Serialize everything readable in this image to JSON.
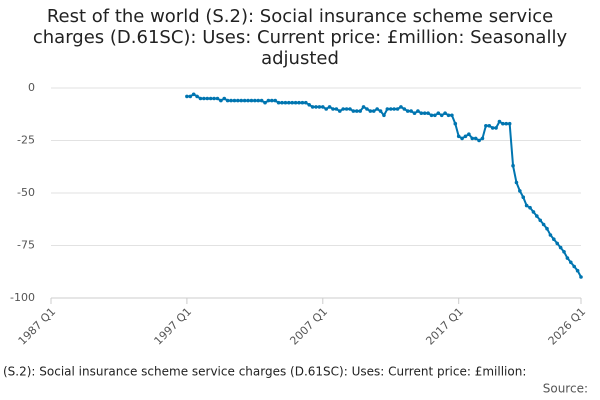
{
  "chart_data": {
    "type": "line",
    "title": "Rest of the world (S.2): Social insurance scheme service charges (D.61SC): Uses: Current price: £million: Seasonally adjusted",
    "footer": "(S.2): Social insurance scheme service charges (D.61SC): Uses: Current price: £million:",
    "source": "Source:",
    "x": [
      1997,
      1997.25,
      1997.5,
      1997.75,
      1998,
      1998.25,
      1998.5,
      1998.75,
      1999,
      1999.25,
      1999.5,
      1999.75,
      2000,
      2000.25,
      2000.5,
      2000.75,
      2001,
      2001.25,
      2001.5,
      2001.75,
      2002,
      2002.25,
      2002.5,
      2002.75,
      2003,
      2003.25,
      2003.5,
      2003.75,
      2004,
      2004.25,
      2004.5,
      2004.75,
      2005,
      2005.25,
      2005.5,
      2005.75,
      2006,
      2006.25,
      2006.5,
      2006.75,
      2007,
      2007.25,
      2007.5,
      2007.75,
      2008,
      2008.25,
      2008.5,
      2008.75,
      2009,
      2009.25,
      2009.5,
      2009.75,
      2010,
      2010.25,
      2010.5,
      2010.75,
      2011,
      2011.25,
      2011.5,
      2011.75,
      2012,
      2012.25,
      2012.5,
      2012.75,
      2013,
      2013.25,
      2013.5,
      2013.75,
      2014,
      2014.25,
      2014.5,
      2014.75,
      2015,
      2015.25,
      2015.5,
      2015.75,
      2016,
      2016.25,
      2016.5,
      2016.75,
      2017,
      2017.25,
      2017.5,
      2017.75,
      2018,
      2018.25,
      2018.5,
      2018.75,
      2019,
      2019.25,
      2019.5,
      2019.75,
      2020,
      2020.25,
      2020.5,
      2020.75,
      2021,
      2021.25,
      2021.5,
      2021.75,
      2022,
      2022.25,
      2022.5,
      2022.75,
      2023,
      2023.25,
      2023.5,
      2023.75,
      2024,
      2024.25,
      2024.5,
      2024.75,
      2025,
      2025.25,
      2025.5,
      2025.75,
      2026
    ],
    "series": [
      {
        "color": "#0075b0",
        "values": [
          -4,
          -4,
          -3,
          -4,
          -5,
          -5,
          -5,
          -5,
          -5,
          -5,
          -6,
          -5,
          -6,
          -6,
          -6,
          -6,
          -6,
          -6,
          -6,
          -6,
          -6,
          -6,
          -6,
          -7,
          -6,
          -6,
          -6,
          -7,
          -7,
          -7,
          -7,
          -7,
          -7,
          -7,
          -7,
          -7,
          -8,
          -9,
          -9,
          -9,
          -9,
          -10,
          -9,
          -10,
          -10,
          -11,
          -10,
          -10,
          -10,
          -11,
          -11,
          -11,
          -9,
          -10,
          -11,
          -11,
          -10,
          -11,
          -13,
          -10,
          -10,
          -10,
          -10,
          -9,
          -10,
          -11,
          -11,
          -12,
          -11,
          -12,
          -12,
          -12,
          -13,
          -13,
          -12,
          -13,
          -12,
          -13,
          -13,
          -17,
          -23,
          -24,
          -23,
          -22,
          -24,
          -24,
          -25,
          -24,
          -18,
          -18,
          -19,
          -19,
          -16,
          -17,
          -17,
          -17,
          -37,
          -45,
          -49,
          -52,
          -56,
          -57,
          -59,
          -61,
          -63,
          -65,
          -67,
          -70,
          -72,
          -74,
          -76,
          -78,
          -81,
          -83,
          -85,
          -87,
          -90
        ]
      }
    ],
    "xlim": [
      1987,
      2026
    ],
    "xticks": [
      {
        "value": 1987,
        "label": "1987 Q1"
      },
      {
        "value": 1997,
        "label": "1997 Q1"
      },
      {
        "value": 2007,
        "label": "2007 Q1"
      },
      {
        "value": 2017,
        "label": "2017 Q1"
      },
      {
        "value": 2026,
        "label": "2026 Q1"
      }
    ],
    "ylim": [
      -100,
      0
    ],
    "yticks": [
      0,
      -25,
      -50,
      -75,
      -100
    ],
    "grid": true
  }
}
